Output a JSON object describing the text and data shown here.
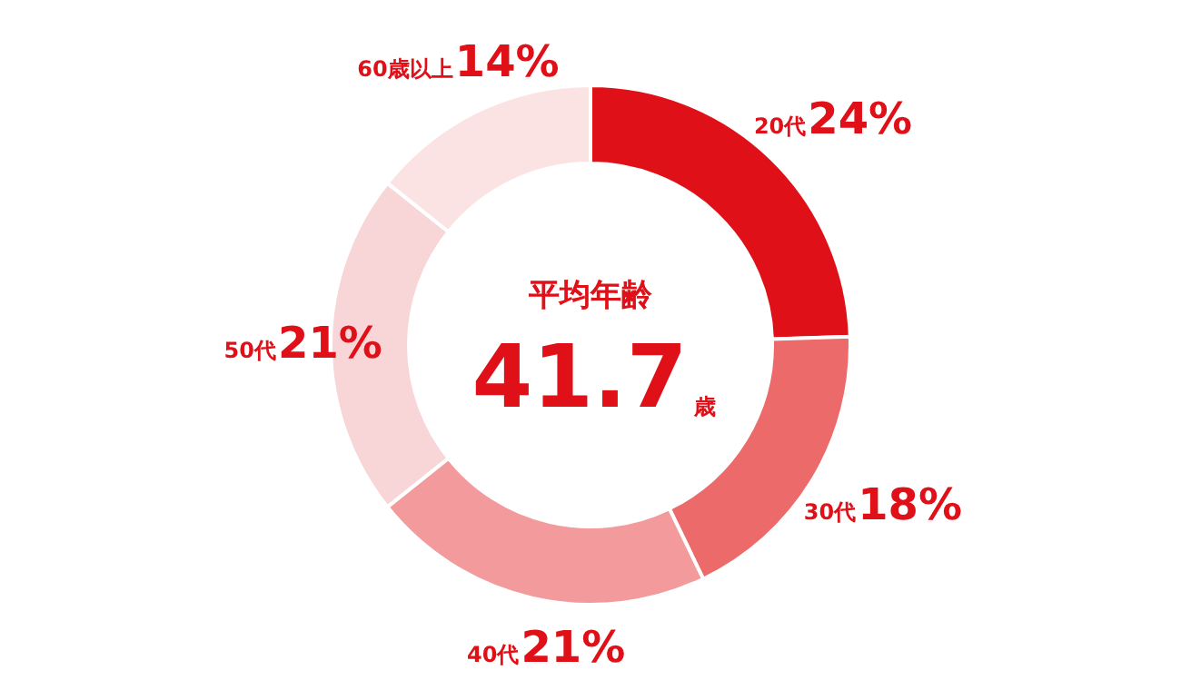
{
  "chart_data": {
    "type": "donut",
    "categories": [
      "20代",
      "30代",
      "40代",
      "50代",
      "60歳以上"
    ],
    "values": [
      24,
      18,
      21,
      21,
      14
    ],
    "value_labels": [
      "24%",
      "18%",
      "21%",
      "21%",
      "14%"
    ],
    "colors": [
      "#e01019",
      "#ec6a6a",
      "#f29a9c",
      "#f8d5d7",
      "#fbe3e4"
    ],
    "data_labels": true,
    "annotations": [
      "平均年齢",
      "41.7",
      "歳"
    ]
  }
}
